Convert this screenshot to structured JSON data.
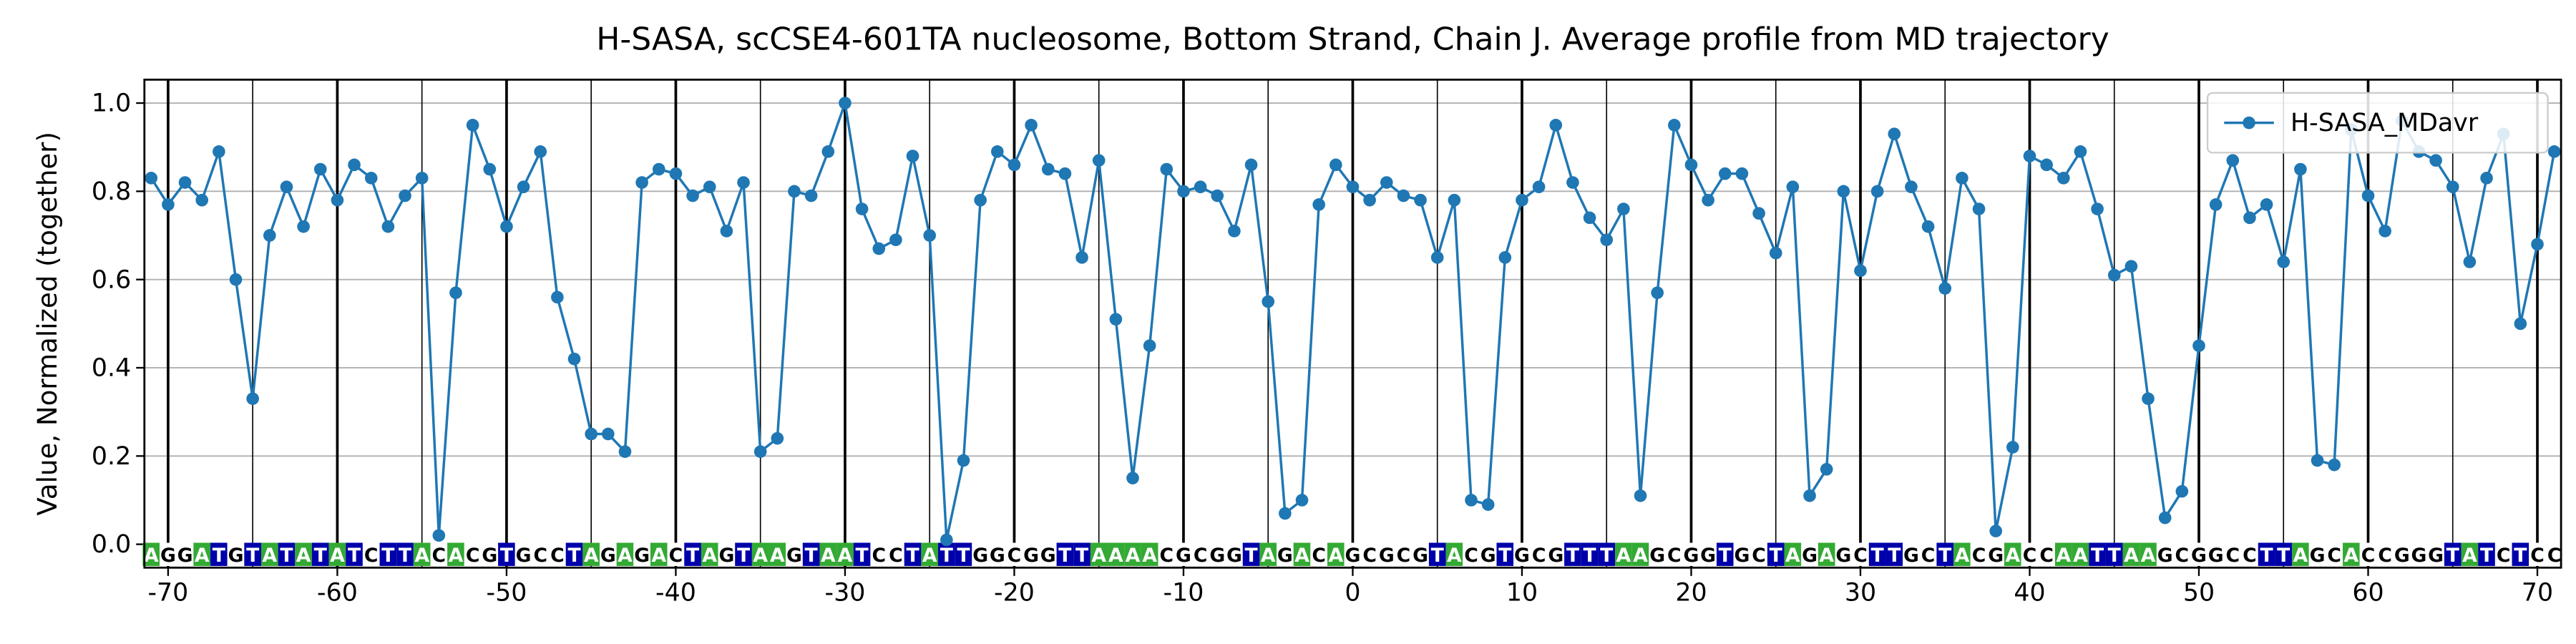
{
  "chart_data": {
    "type": "line",
    "title": "H-SASA, scCSE4-601TA nucleosome, Bottom Strand, Chain J. Average profile from MD trajectory",
    "ylabel": "Value, Normalized (together)",
    "x": [
      -71,
      -70,
      -69,
      -68,
      -67,
      -66,
      -65,
      -64,
      -63,
      -62,
      -61,
      -60,
      -59,
      -58,
      -57,
      -56,
      -55,
      -54,
      -53,
      -52,
      -51,
      -50,
      -49,
      -48,
      -47,
      -46,
      -45,
      -44,
      -43,
      -42,
      -41,
      -40,
      -39,
      -38,
      -37,
      -36,
      -35,
      -34,
      -33,
      -32,
      -31,
      -30,
      -29,
      -28,
      -27,
      -26,
      -25,
      -24,
      -23,
      -22,
      -21,
      -20,
      -19,
      -18,
      -17,
      -16,
      -15,
      -14,
      -13,
      -12,
      -11,
      -10,
      -9,
      -8,
      -7,
      -6,
      -5,
      -4,
      -3,
      -2,
      -1,
      0,
      1,
      2,
      3,
      4,
      5,
      6,
      7,
      8,
      9,
      10,
      11,
      12,
      13,
      14,
      15,
      16,
      17,
      18,
      19,
      20,
      21,
      22,
      23,
      24,
      25,
      26,
      27,
      28,
      29,
      30,
      31,
      32,
      33,
      34,
      35,
      36,
      37,
      38,
      39,
      40,
      41,
      42,
      43,
      44,
      45,
      46,
      47,
      48,
      49,
      50,
      51,
      52,
      53,
      54,
      55,
      56,
      57,
      58,
      59,
      60,
      61,
      62,
      63,
      64,
      65,
      66,
      67,
      68,
      69,
      70,
      71
    ],
    "series": [
      {
        "name": "H-SASA_MDavr",
        "color": "#1f77b4",
        "values": [
          0.83,
          0.77,
          0.82,
          0.78,
          0.89,
          0.6,
          0.33,
          0.7,
          0.81,
          0.72,
          0.85,
          0.78,
          0.86,
          0.83,
          0.72,
          0.79,
          0.83,
          0.02,
          0.57,
          0.95,
          0.85,
          0.72,
          0.81,
          0.89,
          0.56,
          0.42,
          0.25,
          0.25,
          0.21,
          0.82,
          0.85,
          0.84,
          0.79,
          0.81,
          0.71,
          0.82,
          0.21,
          0.24,
          0.8,
          0.79,
          0.89,
          1.0,
          0.76,
          0.67,
          0.69,
          0.88,
          0.7,
          0.01,
          0.19,
          0.78,
          0.89,
          0.86,
          0.95,
          0.85,
          0.84,
          0.65,
          0.87,
          0.51,
          0.15,
          0.45,
          0.85,
          0.8,
          0.81,
          0.79,
          0.71,
          0.86,
          0.55,
          0.07,
          0.1,
          0.77,
          0.86,
          0.81,
          0.78,
          0.82,
          0.79,
          0.78,
          0.65,
          0.78,
          0.1,
          0.09,
          0.65,
          0.78,
          0.81,
          0.95,
          0.82,
          0.74,
          0.69,
          0.76,
          0.11,
          0.57,
          0.95,
          0.86,
          0.78,
          0.84,
          0.84,
          0.75,
          0.66,
          0.81,
          0.11,
          0.17,
          0.8,
          0.62,
          0.8,
          0.93,
          0.81,
          0.72,
          0.58,
          0.83,
          0.76,
          0.03,
          0.22,
          0.88,
          0.86,
          0.83,
          0.89,
          0.76,
          0.61,
          0.63,
          0.33,
          0.06,
          0.12,
          0.45,
          0.77,
          0.87,
          0.74,
          0.77,
          0.64,
          0.85,
          0.19,
          0.18,
          0.94,
          0.79,
          0.71,
          0.96,
          0.89,
          0.87,
          0.81,
          0.64,
          0.83,
          0.93,
          0.5,
          0.68,
          0.89
        ]
      }
    ],
    "sequence": [
      "A",
      "G",
      "G",
      "A",
      "T",
      "G",
      "T",
      "A",
      "T",
      "A",
      "T",
      "A",
      "T",
      "C",
      "T",
      "T",
      "A",
      "C",
      "A",
      "C",
      "G",
      "T",
      "G",
      "C",
      "C",
      "T",
      "A",
      "G",
      "A",
      "G",
      "A",
      "C",
      "T",
      "A",
      "G",
      "T",
      "A",
      "A",
      "G",
      "T",
      "A",
      "A",
      "T",
      "C",
      "C",
      "T",
      "A",
      "T",
      "T",
      "G",
      "G",
      "C",
      "G",
      "G",
      "T",
      "T",
      "A",
      "A",
      "A",
      "A",
      "C",
      "G",
      "C",
      "G",
      "G",
      "T",
      "A",
      "G",
      "A",
      "C",
      "A",
      "G",
      "C",
      "G",
      "C",
      "G",
      "T",
      "A",
      "C",
      "G",
      "T",
      "G",
      "C",
      "G",
      "T",
      "T",
      "T",
      "A",
      "A",
      "G",
      "C",
      "G",
      "G",
      "T",
      "G",
      "C",
      "T",
      "A",
      "G",
      "A",
      "G",
      "C",
      "T",
      "T",
      "G",
      "C",
      "T",
      "A",
      "C",
      "G",
      "A",
      "C",
      "C",
      "A",
      "A",
      "T",
      "T",
      "A",
      "A",
      "G",
      "C",
      "G",
      "G",
      "C",
      "C",
      "T",
      "T",
      "A",
      "G",
      "C",
      "A",
      "C",
      "C",
      "G",
      "G",
      "G",
      "T",
      "A",
      "T",
      "C",
      "T",
      "C",
      "C"
    ],
    "base_colors": {
      "A": "#33aa33",
      "T": "#0000aa",
      "G": "#ffffff",
      "C": "#ffffff"
    },
    "xlim": [
      -71.4,
      71.4
    ],
    "ylim": [
      -0.053,
      1.053
    ],
    "xticks": [
      -70,
      -60,
      -50,
      -40,
      -30,
      -20,
      -10,
      0,
      10,
      20,
      30,
      40,
      50,
      60,
      70
    ],
    "yticks": [
      {
        "value": 0,
        "label": "0.0"
      },
      {
        "value": 0.2,
        "label": "0.2"
      },
      {
        "value": 0.4,
        "label": "0.4"
      },
      {
        "value": 0.6,
        "label": "0.6"
      },
      {
        "value": 0.8,
        "label": "0.8"
      },
      {
        "value": 1.0,
        "label": "1.0"
      }
    ],
    "grid": true,
    "legend": "upper right"
  }
}
